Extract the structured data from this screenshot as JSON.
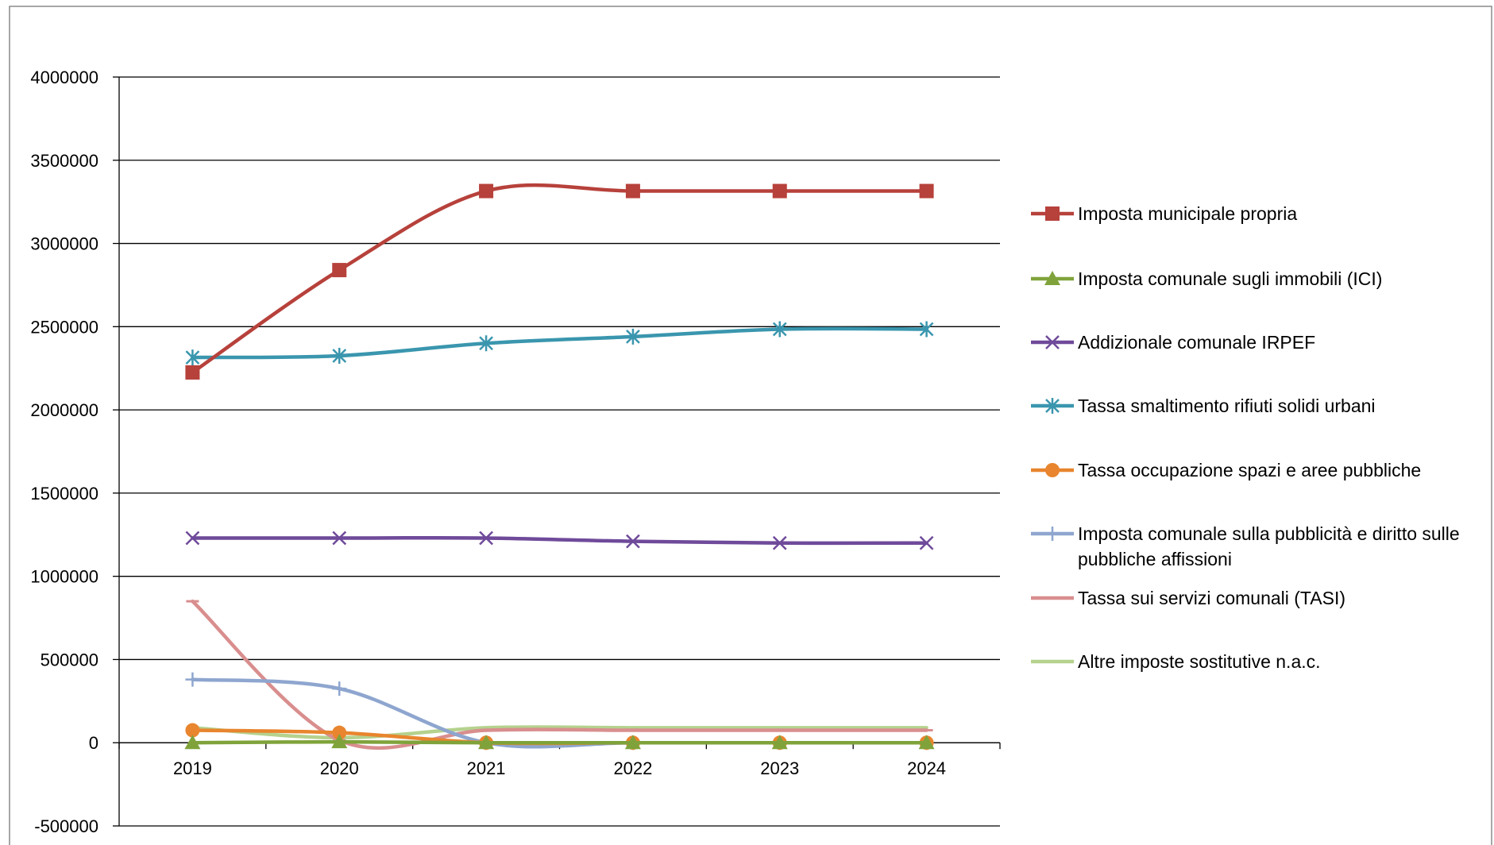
{
  "chart_data": {
    "type": "line",
    "title": "",
    "xlabel": "",
    "ylabel": "",
    "categories": [
      "2019",
      "2020",
      "2021",
      "2022",
      "2023",
      "2024"
    ],
    "ylim": [
      -500000,
      4000000
    ],
    "yticks": [
      -500000,
      0,
      500000,
      1000000,
      1500000,
      2000000,
      2500000,
      3000000,
      3500000,
      4000000
    ],
    "ytick_labels": [
      "-500000",
      "0",
      "500000",
      "1000000",
      "1500000",
      "2000000",
      "2500000",
      "3000000",
      "3500000",
      "4000000"
    ],
    "grid": true,
    "smooth": true,
    "legend_position": "right",
    "series": [
      {
        "name": "Imposta municipale propria",
        "color": "#B7413B",
        "marker": "square",
        "values": [
          2225000,
          2840000,
          3315000,
          3315000,
          3315000,
          3315000
        ]
      },
      {
        "name": "Imposta comunale sugli immobili (ICI)",
        "color": "#7FA33A",
        "marker": "triangle",
        "values": [
          0,
          5000,
          0,
          0,
          0,
          0
        ]
      },
      {
        "name": "Addizionale comunale IRPEF",
        "color": "#6F4A9A",
        "marker": "x",
        "values": [
          1230000,
          1230000,
          1230000,
          1210000,
          1200000,
          1200000
        ]
      },
      {
        "name": "Tassa smaltimento rifiuti solidi urbani",
        "color": "#3A96AE",
        "marker": "asterisk",
        "values": [
          2315000,
          2325000,
          2400000,
          2440000,
          2485000,
          2485000
        ]
      },
      {
        "name": "Tassa occupazione spazi e aree pubbliche",
        "color": "#E8852E",
        "marker": "circle",
        "values": [
          75000,
          60000,
          0,
          0,
          0,
          0
        ]
      },
      {
        "name": "Imposta comunale sulla pubblicità e diritto sulle pubbliche affissioni",
        "color": "#8EA6CF",
        "marker": "plus",
        "values": [
          380000,
          325000,
          0,
          0,
          0,
          0
        ]
      },
      {
        "name": "Tassa sui servizi comunali (TASI)",
        "color": "#D98E8E",
        "marker": "dash",
        "values": [
          850000,
          15000,
          75000,
          75000,
          75000,
          75000
        ]
      },
      {
        "name": "Altre imposte sostitutive n.a.c.",
        "color": "#B5D28E",
        "marker": "none",
        "values": [
          90000,
          30000,
          90000,
          90000,
          90000,
          90000
        ]
      }
    ]
  }
}
